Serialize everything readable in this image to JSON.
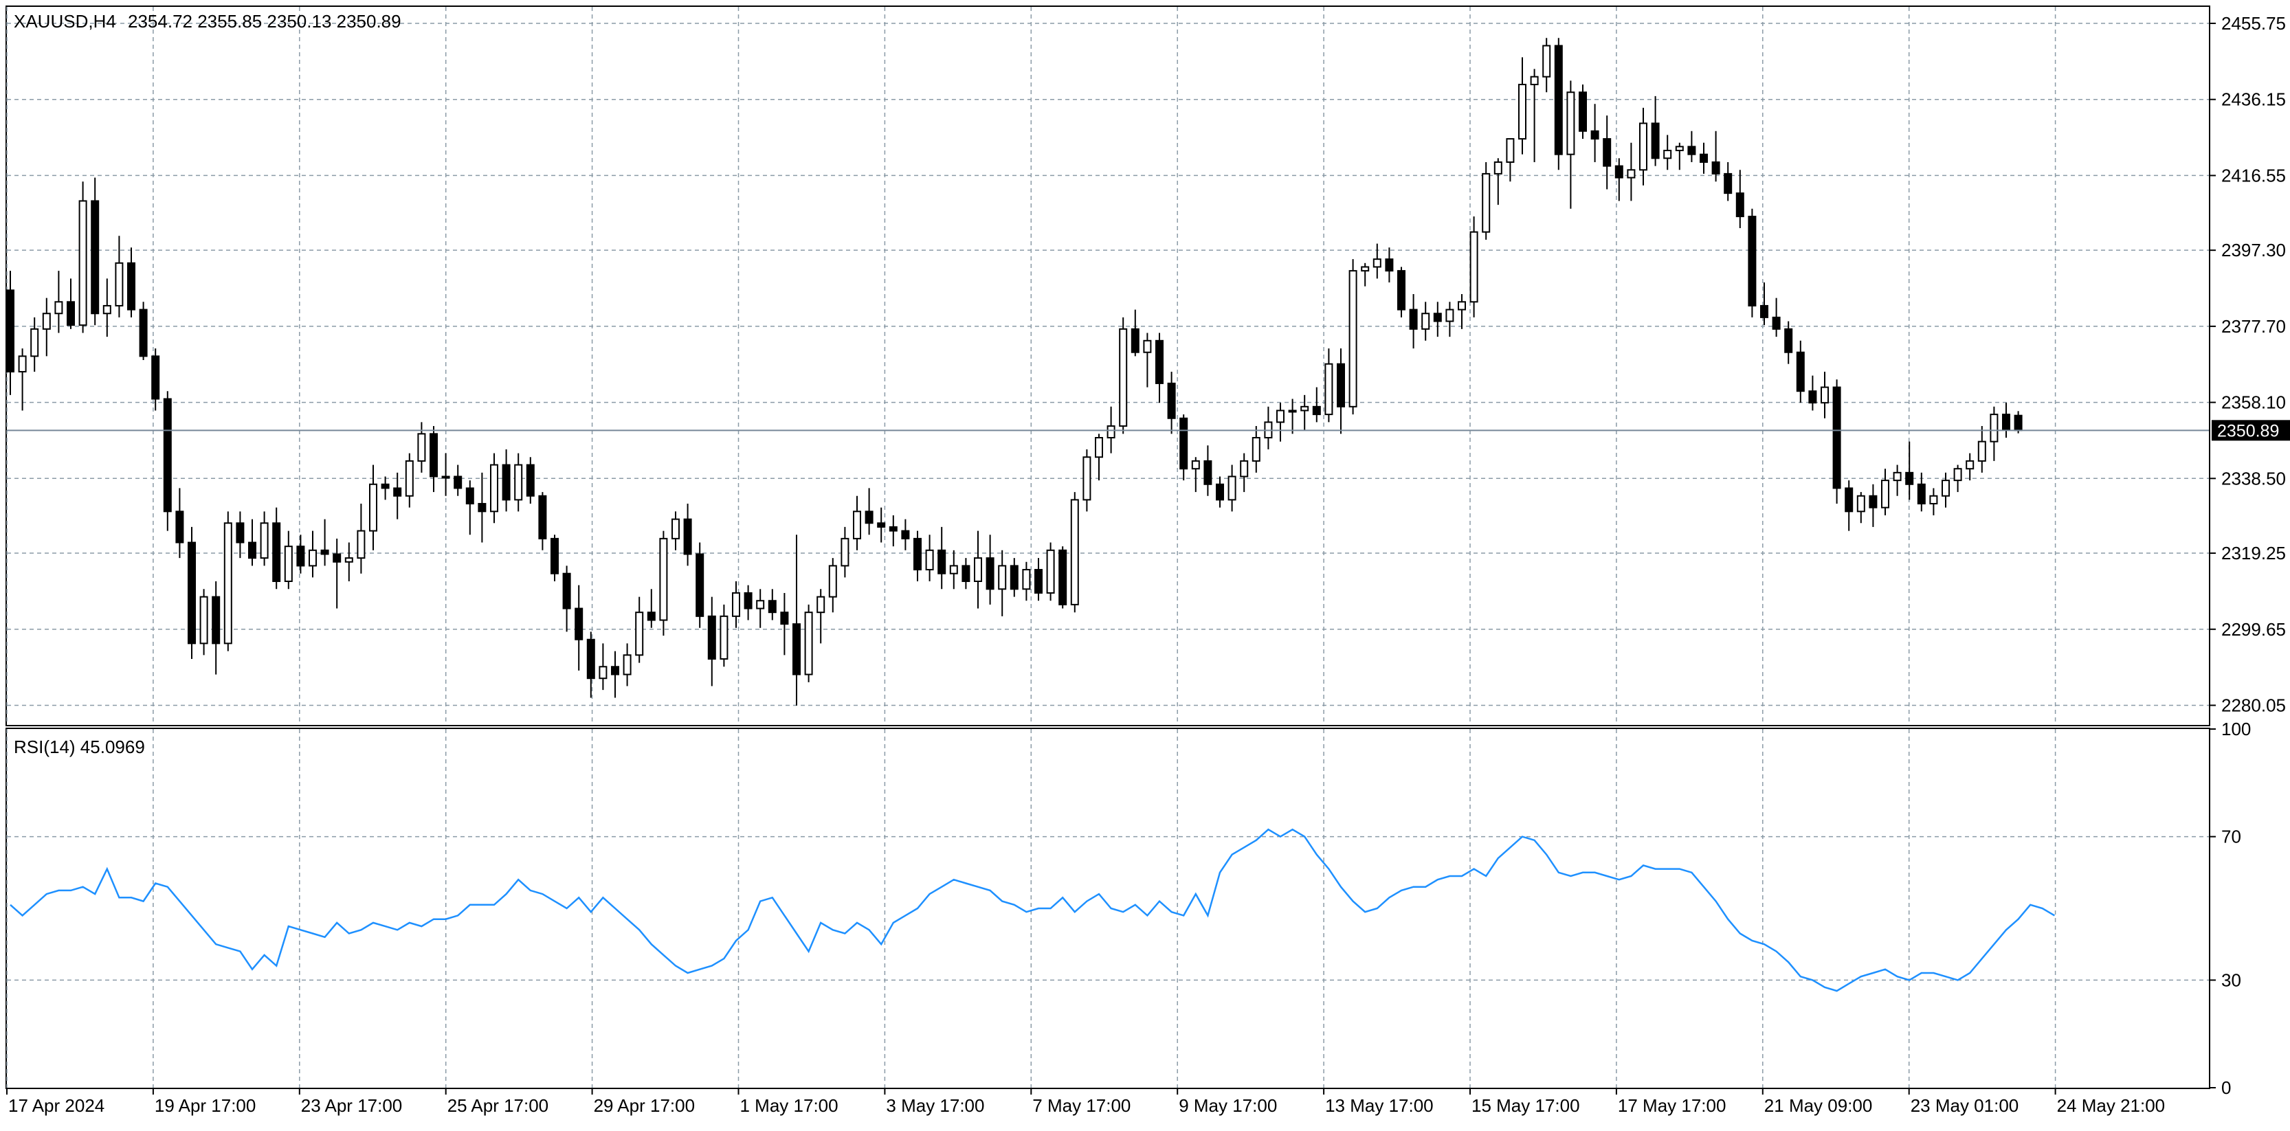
{
  "chart_data": [
    {
      "type": "candlestick",
      "symbol_header": "XAUUSD,H4",
      "ohlc_header": "2354.72 2355.85 2350.13 2350.89",
      "last_price_label": "2350.89",
      "last_price": 2350.89,
      "y_range": [
        2275.0,
        2460.0
      ],
      "y_ticks": [
        "2455.75",
        "2436.15",
        "2416.55",
        "2397.30",
        "2377.70",
        "2358.10",
        "2338.50",
        "2319.25",
        "2299.65",
        "2280.05"
      ],
      "x_ticks": [
        "17 Apr 2024",
        "19 Apr 17:00",
        "23 Apr 17:00",
        "25 Apr 17:00",
        "29 Apr 17:00",
        "1 May 17:00",
        "3 May 17:00",
        "7 May 17:00",
        "9 May 17:00",
        "13 May 17:00",
        "15 May 17:00",
        "17 May 17:00",
        "21 May 09:00",
        "23 May 01:00",
        "24 May 21:00"
      ],
      "grid": true,
      "candles": [
        [
          2387,
          2392,
          2360,
          2366
        ],
        [
          2366,
          2372,
          2356,
          2370
        ],
        [
          2370,
          2380,
          2366,
          2377
        ],
        [
          2377,
          2385,
          2370,
          2381
        ],
        [
          2381,
          2392,
          2376,
          2384
        ],
        [
          2384,
          2390,
          2377,
          2378
        ],
        [
          2378,
          2415,
          2376,
          2410
        ],
        [
          2410,
          2416,
          2378,
          2381
        ],
        [
          2381,
          2390,
          2375,
          2383
        ],
        [
          2383,
          2401,
          2380,
          2394
        ],
        [
          2394,
          2398,
          2380,
          2382
        ],
        [
          2382,
          2384,
          2369,
          2370
        ],
        [
          2370,
          2372,
          2356,
          2359
        ],
        [
          2359,
          2361,
          2325,
          2330
        ],
        [
          2330,
          2336,
          2318,
          2322
        ],
        [
          2322,
          2326,
          2292,
          2296
        ],
        [
          2296,
          2310,
          2293,
          2308
        ],
        [
          2308,
          2312,
          2288,
          2296
        ],
        [
          2296,
          2330,
          2294,
          2327
        ],
        [
          2327,
          2330,
          2318,
          2322
        ],
        [
          2322,
          2328,
          2316,
          2318
        ],
        [
          2318,
          2330,
          2316,
          2327
        ],
        [
          2327,
          2331,
          2310,
          2312
        ],
        [
          2312,
          2325,
          2310,
          2321
        ],
        [
          2321,
          2324,
          2314,
          2316
        ],
        [
          2316,
          2325,
          2313,
          2320
        ],
        [
          2320,
          2328,
          2316,
          2319
        ],
        [
          2319,
          2323,
          2305,
          2317
        ],
        [
          2317,
          2322,
          2312,
          2318
        ],
        [
          2318,
          2332,
          2314,
          2325
        ],
        [
          2325,
          2342,
          2320,
          2337
        ],
        [
          2337,
          2339,
          2333,
          2336
        ],
        [
          2336,
          2340,
          2328,
          2334
        ],
        [
          2334,
          2345,
          2331,
          2343
        ],
        [
          2343,
          2353,
          2340,
          2350
        ],
        [
          2350,
          2352,
          2335,
          2339
        ],
        [
          2339,
          2345,
          2334,
          2339
        ],
        [
          2339,
          2342,
          2334,
          2336
        ],
        [
          2336,
          2338,
          2324,
          2332
        ],
        [
          2332,
          2340,
          2322,
          2330
        ],
        [
          2330,
          2345,
          2327,
          2342
        ],
        [
          2342,
          2346,
          2330,
          2333
        ],
        [
          2333,
          2345,
          2330,
          2342
        ],
        [
          2342,
          2344,
          2332,
          2334
        ],
        [
          2334,
          2335,
          2320,
          2323
        ],
        [
          2323,
          2324,
          2312,
          2314
        ],
        [
          2314,
          2316,
          2299,
          2305
        ],
        [
          2305,
          2311,
          2289,
          2297
        ],
        [
          2297,
          2299,
          2282,
          2287
        ],
        [
          2287,
          2296,
          2284,
          2290
        ],
        [
          2290,
          2294,
          2282,
          2288
        ],
        [
          2288,
          2296,
          2285,
          2293
        ],
        [
          2293,
          2308,
          2291,
          2304
        ],
        [
          2304,
          2310,
          2300,
          2302
        ],
        [
          2302,
          2325,
          2298,
          2323
        ],
        [
          2323,
          2330,
          2320,
          2328
        ],
        [
          2328,
          2332,
          2316,
          2319
        ],
        [
          2319,
          2322,
          2300,
          2303
        ],
        [
          2303,
          2308,
          2285,
          2292
        ],
        [
          2292,
          2306,
          2290,
          2303
        ],
        [
          2303,
          2312,
          2300,
          2309
        ],
        [
          2309,
          2311,
          2302,
          2305
        ],
        [
          2305,
          2310,
          2300,
          2307
        ],
        [
          2307,
          2310,
          2302,
          2304
        ],
        [
          2304,
          2309,
          2293,
          2301
        ],
        [
          2301,
          2324,
          2280,
          2288
        ],
        [
          2288,
          2306,
          2286,
          2304
        ],
        [
          2304,
          2310,
          2296,
          2308
        ],
        [
          2308,
          2318,
          2304,
          2316
        ],
        [
          2316,
          2326,
          2313,
          2323
        ],
        [
          2323,
          2334,
          2320,
          2330
        ],
        [
          2330,
          2336,
          2324,
          2327
        ],
        [
          2327,
          2331,
          2322,
          2326
        ],
        [
          2326,
          2329,
          2321,
          2325
        ],
        [
          2325,
          2328,
          2320,
          2323
        ],
        [
          2323,
          2325,
          2312,
          2315
        ],
        [
          2315,
          2324,
          2312,
          2320
        ],
        [
          2320,
          2326,
          2310,
          2314
        ],
        [
          2314,
          2320,
          2310,
          2316
        ],
        [
          2316,
          2318,
          2310,
          2312
        ],
        [
          2312,
          2325,
          2305,
          2318
        ],
        [
          2318,
          2324,
          2306,
          2310
        ],
        [
          2310,
          2320,
          2303,
          2316
        ],
        [
          2316,
          2318,
          2308,
          2310
        ],
        [
          2310,
          2317,
          2307,
          2315
        ],
        [
          2315,
          2318,
          2307,
          2309
        ],
        [
          2309,
          2322,
          2307,
          2320
        ],
        [
          2320,
          2321,
          2305,
          2306
        ],
        [
          2306,
          2335,
          2304,
          2333
        ],
        [
          2333,
          2346,
          2330,
          2344
        ],
        [
          2344,
          2350,
          2338,
          2349
        ],
        [
          2349,
          2357,
          2345,
          2352
        ],
        [
          2352,
          2380,
          2350,
          2377
        ],
        [
          2377,
          2382,
          2370,
          2371
        ],
        [
          2371,
          2376,
          2362,
          2374
        ],
        [
          2374,
          2376,
          2358,
          2363
        ],
        [
          2363,
          2366,
          2350,
          2354
        ],
        [
          2354,
          2355,
          2338,
          2341
        ],
        [
          2341,
          2344,
          2335,
          2343
        ],
        [
          2343,
          2347,
          2334,
          2337
        ],
        [
          2337,
          2339,
          2331,
          2333
        ],
        [
          2333,
          2342,
          2330,
          2339
        ],
        [
          2339,
          2345,
          2335,
          2343
        ],
        [
          2343,
          2352,
          2340,
          2349
        ],
        [
          2349,
          2357,
          2346,
          2353
        ],
        [
          2353,
          2358,
          2348,
          2356
        ],
        [
          2356,
          2359,
          2350,
          2356
        ],
        [
          2356,
          2360,
          2351,
          2357
        ],
        [
          2357,
          2362,
          2353,
          2355
        ],
        [
          2355,
          2372,
          2353,
          2368
        ],
        [
          2368,
          2372,
          2350,
          2357
        ],
        [
          2357,
          2395,
          2355,
          2392
        ],
        [
          2392,
          2394,
          2388,
          2393
        ],
        [
          2393,
          2399,
          2390,
          2395
        ],
        [
          2395,
          2398,
          2389,
          2392
        ],
        [
          2392,
          2393,
          2380,
          2382
        ],
        [
          2382,
          2386,
          2372,
          2377
        ],
        [
          2377,
          2384,
          2374,
          2381
        ],
        [
          2381,
          2384,
          2375,
          2379
        ],
        [
          2379,
          2384,
          2375,
          2382
        ],
        [
          2382,
          2386,
          2377,
          2384
        ],
        [
          2384,
          2406,
          2380,
          2402
        ],
        [
          2402,
          2420,
          2400,
          2417
        ],
        [
          2417,
          2421,
          2409,
          2420
        ],
        [
          2420,
          2426,
          2415,
          2426
        ],
        [
          2426,
          2447,
          2422,
          2440
        ],
        [
          2440,
          2444,
          2420,
          2442
        ],
        [
          2442,
          2452,
          2438,
          2450
        ],
        [
          2450,
          2452,
          2418,
          2422
        ],
        [
          2422,
          2441,
          2408,
          2438
        ],
        [
          2438,
          2440,
          2426,
          2428
        ],
        [
          2428,
          2435,
          2420,
          2426
        ],
        [
          2426,
          2432,
          2413,
          2419
        ],
        [
          2419,
          2421,
          2410,
          2416
        ],
        [
          2416,
          2425,
          2410,
          2418
        ],
        [
          2418,
          2434,
          2414,
          2430
        ],
        [
          2430,
          2437,
          2419,
          2421
        ],
        [
          2421,
          2427,
          2418,
          2423
        ],
        [
          2423,
          2425,
          2418,
          2424
        ],
        [
          2424,
          2428,
          2420,
          2422
        ],
        [
          2422,
          2425,
          2417,
          2420
        ],
        [
          2420,
          2428,
          2415,
          2417
        ],
        [
          2417,
          2420,
          2410,
          2412
        ],
        [
          2412,
          2418,
          2403,
          2406
        ],
        [
          2406,
          2408,
          2380,
          2383
        ],
        [
          2383,
          2389,
          2378,
          2380
        ],
        [
          2380,
          2385,
          2375,
          2377
        ],
        [
          2377,
          2379,
          2368,
          2371
        ],
        [
          2371,
          2374,
          2358,
          2361
        ],
        [
          2361,
          2365,
          2356,
          2358
        ],
        [
          2358,
          2366,
          2354,
          2362
        ],
        [
          2362,
          2364,
          2332,
          2336
        ],
        [
          2336,
          2338,
          2325,
          2330
        ],
        [
          2330,
          2335,
          2327,
          2334
        ],
        [
          2334,
          2337,
          2326,
          2331
        ],
        [
          2331,
          2341,
          2329,
          2338
        ],
        [
          2338,
          2342,
          2334,
          2340
        ],
        [
          2340,
          2348,
          2333,
          2337
        ],
        [
          2337,
          2340,
          2330,
          2332
        ],
        [
          2332,
          2336,
          2329,
          2334
        ],
        [
          2334,
          2340,
          2331,
          2338
        ],
        [
          2338,
          2342,
          2335,
          2341
        ],
        [
          2341,
          2345,
          2338,
          2343
        ],
        [
          2343,
          2352,
          2340,
          2348
        ],
        [
          2348,
          2357,
          2343,
          2355
        ],
        [
          2355,
          2358,
          2349,
          2351
        ],
        [
          2354.72,
          2355.85,
          2350.13,
          2350.89
        ]
      ]
    },
    {
      "type": "line",
      "header": "RSI(14) 45.0969",
      "y_range": [
        0,
        100
      ],
      "y_ticks": [
        "100",
        "70",
        "30",
        "0"
      ],
      "levels": [
        70,
        30
      ],
      "line_color": "#1e90ff",
      "series": [
        {
          "values": [
            51,
            48,
            51,
            54,
            55,
            55,
            56,
            54,
            61,
            53,
            53,
            52,
            57,
            56,
            52,
            48,
            44,
            40,
            39,
            38,
            33,
            37,
            34,
            45,
            44,
            43,
            42,
            46,
            43,
            44,
            46,
            45,
            44,
            46,
            45,
            47,
            47,
            48,
            51,
            51,
            51,
            54,
            58,
            55,
            54,
            52,
            50,
            53,
            49,
            53,
            50,
            47,
            44,
            40,
            37,
            34,
            32,
            33,
            34,
            36,
            41,
            44,
            52,
            53,
            48,
            43,
            38,
            46,
            44,
            43,
            46,
            44,
            40,
            46,
            48,
            50,
            54,
            56,
            58,
            57,
            56,
            55,
            52,
            51,
            49,
            50,
            50,
            53,
            49,
            52,
            54,
            50,
            49,
            51,
            48,
            52,
            49,
            48,
            54,
            48,
            60,
            65,
            67,
            69,
            72,
            70,
            72,
            70,
            65,
            61,
            56,
            52,
            49,
            50,
            53,
            55,
            56,
            56,
            58,
            59,
            59,
            61,
            59,
            64,
            67,
            70,
            69,
            65,
            60,
            59,
            60,
            60,
            59,
            58,
            59,
            62,
            61,
            61,
            61,
            60,
            56,
            52,
            47,
            43,
            41,
            40,
            38,
            35,
            31,
            30,
            28,
            27,
            29,
            31,
            32,
            33,
            31,
            30,
            32,
            32,
            31,
            30,
            32,
            36,
            40,
            44,
            47,
            51,
            50,
            48
          ]
        }
      ]
    }
  ]
}
